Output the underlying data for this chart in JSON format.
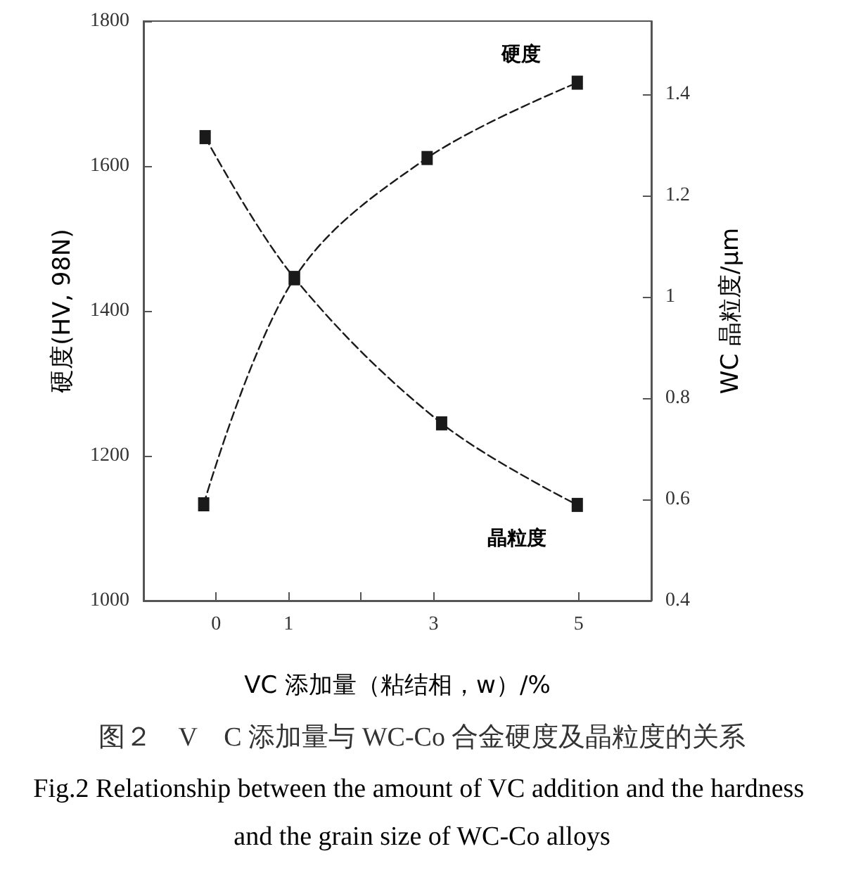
{
  "chart_data": {
    "type": "line",
    "title": "图２　V　C 添加量与 WC-Co 合金硬度及晶粒度的关系",
    "subtitle": "Fig.2 Relationship between the amount of VC addition and the hardness and the grain size of WC-Co alloys",
    "xlabel": "VC 添加量（粘结相，w）/%",
    "ylabel": "硬度(HV, 98N)",
    "y2label": "WC 晶粒度/μm",
    "xlim": [
      -1,
      6
    ],
    "xticks": [
      0,
      1,
      {
        "value": 2,
        "label": null
      },
      3,
      5
    ],
    "ylim": [
      1000,
      1800
    ],
    "yticks": [
      1000,
      1200,
      1400,
      1600,
      1800
    ],
    "y2lim": [
      0.4,
      1.544
    ],
    "y2ticks": [
      0.4,
      0.6,
      0.8,
      1.0,
      1.2,
      1.4
    ],
    "marker": "square",
    "line_style": "dashed",
    "grid": false,
    "legend": false,
    "series": [
      {
        "name": "硬度",
        "color": "#1a1a1a",
        "x": [
          -0.17,
          1.08,
          2.91,
          4.98
        ],
        "values": [
          1133,
          1445,
          1611,
          1715
        ]
      },
      {
        "name": "晶粒度",
        "color": "#1a1a1a",
        "axis": "y2",
        "x": [
          -0.15,
          1.08,
          3.11,
          4.98
        ],
        "values": [
          1.315,
          1.037,
          0.75,
          0.589
        ]
      }
    ]
  }
}
